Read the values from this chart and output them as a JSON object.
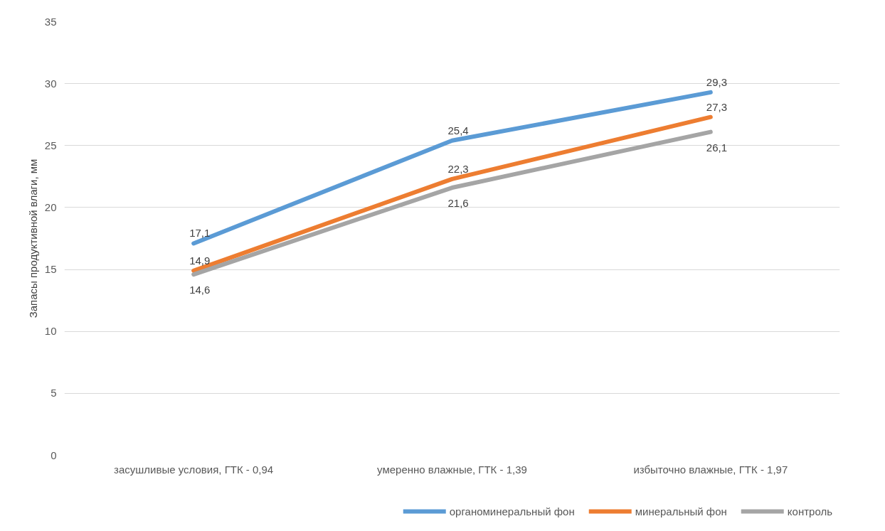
{
  "chart_data": {
    "type": "line",
    "ylabel": "Запасы продуктивной влаги, мм",
    "categories": [
      "засушливые условия, ГТК - 0,94",
      "умеренно влажные, ГТК - 1,39",
      "избыточно влажные, ГТК - 1,97"
    ],
    "series": [
      {
        "name": "органоминеральный фон",
        "color": "#5b9bd5",
        "values": [
          17.1,
          25.4,
          29.3
        ],
        "value_labels": [
          "17,1",
          "25,4",
          "29,3"
        ]
      },
      {
        "name": "минеральный фон",
        "color": "#ed7d31",
        "values": [
          14.9,
          22.3,
          27.3
        ],
        "value_labels": [
          "14,9",
          "22,3",
          "27,3"
        ]
      },
      {
        "name": "контроль",
        "color": "#a5a5a5",
        "values": [
          14.6,
          21.6,
          26.1
        ],
        "value_labels": [
          "14,6",
          "21,6",
          "26,1"
        ]
      }
    ],
    "ylim": [
      0,
      35
    ],
    "yticks": [
      0,
      5,
      10,
      15,
      20,
      25,
      30,
      35
    ],
    "grid": "y",
    "legend": "bottom",
    "marker": "none",
    "line_style": "solid"
  }
}
